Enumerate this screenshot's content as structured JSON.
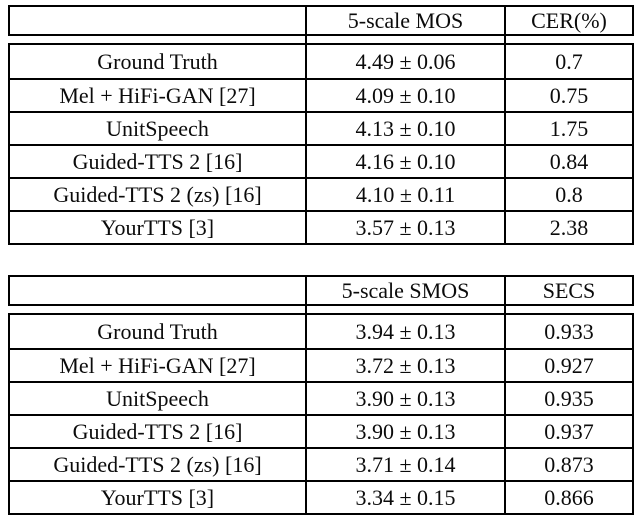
{
  "page": {
    "background": "#ffffff",
    "text_color": "#0b0b0b",
    "border_color": "#000000"
  },
  "tables": [
    {
      "id": "mos-cer",
      "columns": [
        "",
        "5-scale MOS",
        "CER(%)"
      ],
      "rows": [
        {
          "system": "Ground Truth",
          "metric1": "4.49 ± 0.06",
          "metric2": "0.7"
        },
        {
          "system": "Mel + HiFi-GAN [27]",
          "metric1": "4.09 ± 0.10",
          "metric2": "0.75"
        },
        {
          "system": "UnitSpeech",
          "metric1": "4.13 ± 0.10",
          "metric2": "1.75"
        },
        {
          "system": "Guided-TTS 2 [16]",
          "metric1": "4.16 ± 0.10",
          "metric2": "0.84"
        },
        {
          "system": "Guided-TTS 2 (zs) [16]",
          "metric1": "4.10 ± 0.11",
          "metric2": "0.8"
        },
        {
          "system": "YourTTS [3]",
          "metric1": "3.57 ± 0.13",
          "metric2": "2.38"
        }
      ]
    },
    {
      "id": "smos-secs",
      "columns": [
        "",
        "5-scale SMOS",
        "SECS"
      ],
      "rows": [
        {
          "system": "Ground Truth",
          "metric1": "3.94 ± 0.13",
          "metric2": "0.933"
        },
        {
          "system": "Mel + HiFi-GAN [27]",
          "metric1": "3.72 ± 0.13",
          "metric2": "0.927"
        },
        {
          "system": "UnitSpeech",
          "metric1": "3.90 ± 0.13",
          "metric2": "0.935"
        },
        {
          "system": "Guided-TTS 2 [16]",
          "metric1": "3.90 ± 0.13",
          "metric2": "0.937"
        },
        {
          "system": "Guided-TTS 2 (zs) [16]",
          "metric1": "3.71 ± 0.14",
          "metric2": "0.873"
        },
        {
          "system": "YourTTS [3]",
          "metric1": "3.34 ± 0.15",
          "metric2": "0.866"
        }
      ]
    }
  ]
}
